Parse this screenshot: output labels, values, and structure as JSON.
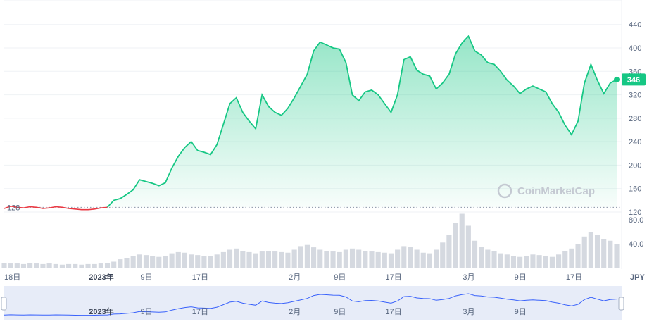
{
  "chart_data": {
    "type": "line",
    "price_axis": {
      "ticks": [
        "440",
        "400",
        "360",
        "320",
        "280",
        "240",
        "200",
        "160",
        "120"
      ],
      "ylim": [
        110,
        460
      ]
    },
    "volume_axis": {
      "ticks": [
        "80.0",
        "40.0"
      ],
      "ylim": [
        0,
        110
      ]
    },
    "baseline": {
      "value": 128,
      "label": "128"
    },
    "current": {
      "value": 346,
      "label": "346"
    },
    "currency": "JPY",
    "watermark": "CoinMarketCap",
    "x_ticks": [
      {
        "label": "18日",
        "bold": false,
        "i": 0
      },
      {
        "label": "2023年",
        "bold": true,
        "i": 14
      },
      {
        "label": "9日",
        "bold": false,
        "i": 22
      },
      {
        "label": "17日",
        "bold": false,
        "i": 30
      },
      {
        "label": "2月",
        "bold": false,
        "i": 45
      },
      {
        "label": "9日",
        "bold": false,
        "i": 52
      },
      {
        "label": "17日",
        "bold": false,
        "i": 60
      },
      {
        "label": "3月",
        "bold": false,
        "i": 72
      },
      {
        "label": "9日",
        "bold": false,
        "i": 80
      },
      {
        "label": "17日",
        "bold": false,
        "i": 88
      }
    ],
    "navigator_ticks": [
      {
        "label": "2023年",
        "bold": true,
        "i": 14
      },
      {
        "label": "9日",
        "bold": false,
        "i": 22
      },
      {
        "label": "17日",
        "bold": false,
        "i": 30
      },
      {
        "label": "2月",
        "bold": false,
        "i": 45
      },
      {
        "label": "9日",
        "bold": false,
        "i": 52
      },
      {
        "label": "17日",
        "bold": false,
        "i": 60
      },
      {
        "label": "3月",
        "bold": false,
        "i": 72
      },
      {
        "label": "9日",
        "bold": false,
        "i": 80
      }
    ],
    "prices": [
      126,
      130,
      128,
      127,
      129,
      128,
      126,
      127,
      129,
      128,
      126,
      125,
      124,
      124,
      125,
      127,
      128,
      140,
      143,
      150,
      158,
      175,
      172,
      169,
      165,
      170,
      195,
      215,
      230,
      240,
      225,
      222,
      218,
      235,
      270,
      305,
      315,
      290,
      275,
      262,
      320,
      300,
      290,
      285,
      297,
      315,
      335,
      355,
      395,
      410,
      405,
      400,
      398,
      375,
      320,
      310,
      325,
      328,
      320,
      305,
      290,
      320,
      380,
      385,
      362,
      355,
      352,
      330,
      340,
      355,
      390,
      408,
      420,
      395,
      388,
      375,
      372,
      360,
      345,
      335,
      322,
      330,
      335,
      330,
      325,
      305,
      290,
      268,
      252,
      275,
      340,
      372,
      345,
      322,
      340,
      346
    ],
    "volumes": [
      8,
      7,
      7,
      6,
      8,
      7,
      6,
      7,
      6,
      5,
      6,
      6,
      5,
      6,
      6,
      7,
      8,
      10,
      14,
      16,
      20,
      22,
      21,
      19,
      18,
      20,
      24,
      26,
      25,
      22,
      21,
      20,
      19,
      22,
      26,
      30,
      32,
      28,
      26,
      24,
      27,
      28,
      27,
      26,
      25,
      30,
      36,
      38,
      34,
      30,
      28,
      27,
      26,
      30,
      32,
      30,
      28,
      27,
      26,
      25,
      24,
      30,
      36,
      35,
      30,
      25,
      24,
      30,
      42,
      55,
      75,
      90,
      70,
      45,
      35,
      30,
      28,
      24,
      22,
      20,
      18,
      20,
      22,
      21,
      20,
      18,
      22,
      28,
      32,
      40,
      52,
      60,
      55,
      48,
      45,
      40
    ]
  }
}
